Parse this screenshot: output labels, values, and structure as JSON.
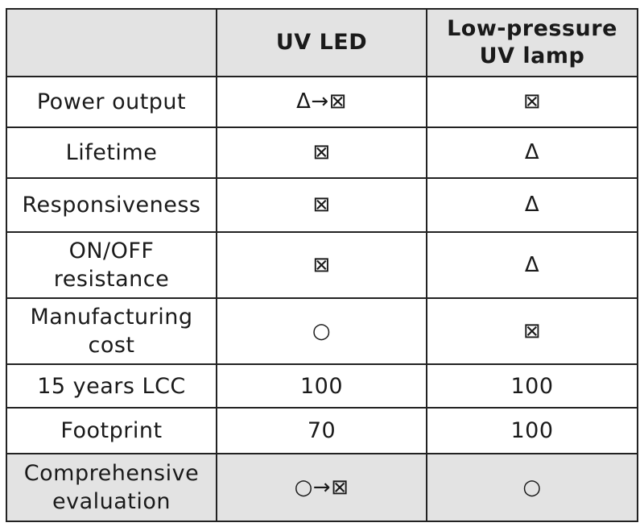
{
  "table": {
    "headers": [
      "",
      "UV LED",
      "Low-pressure UV lamp"
    ],
    "header_colors": {
      "shade": "#e3e3e3",
      "border": "#222222"
    },
    "rows": [
      {
        "label": "Power output",
        "uv_led": "Δ→⊠",
        "lamp": "⊠"
      },
      {
        "label": "Lifetime",
        "uv_led": "⊠",
        "lamp": "Δ"
      },
      {
        "label": "Responsiveness",
        "uv_led": "⊠",
        "lamp": "Δ"
      },
      {
        "label": "ON/OFF resistance",
        "uv_led": "⊠",
        "lamp": "Δ"
      },
      {
        "label": "Manufacturing cost",
        "uv_led": "○",
        "lamp": "⊠"
      },
      {
        "label": "15 years LCC",
        "uv_led": "100",
        "lamp": "100"
      },
      {
        "label": "Footprint",
        "uv_led": "70",
        "lamp": "100"
      },
      {
        "label": "Comprehensive evaluation",
        "uv_led": "○→⊠",
        "lamp": "○"
      }
    ]
  }
}
